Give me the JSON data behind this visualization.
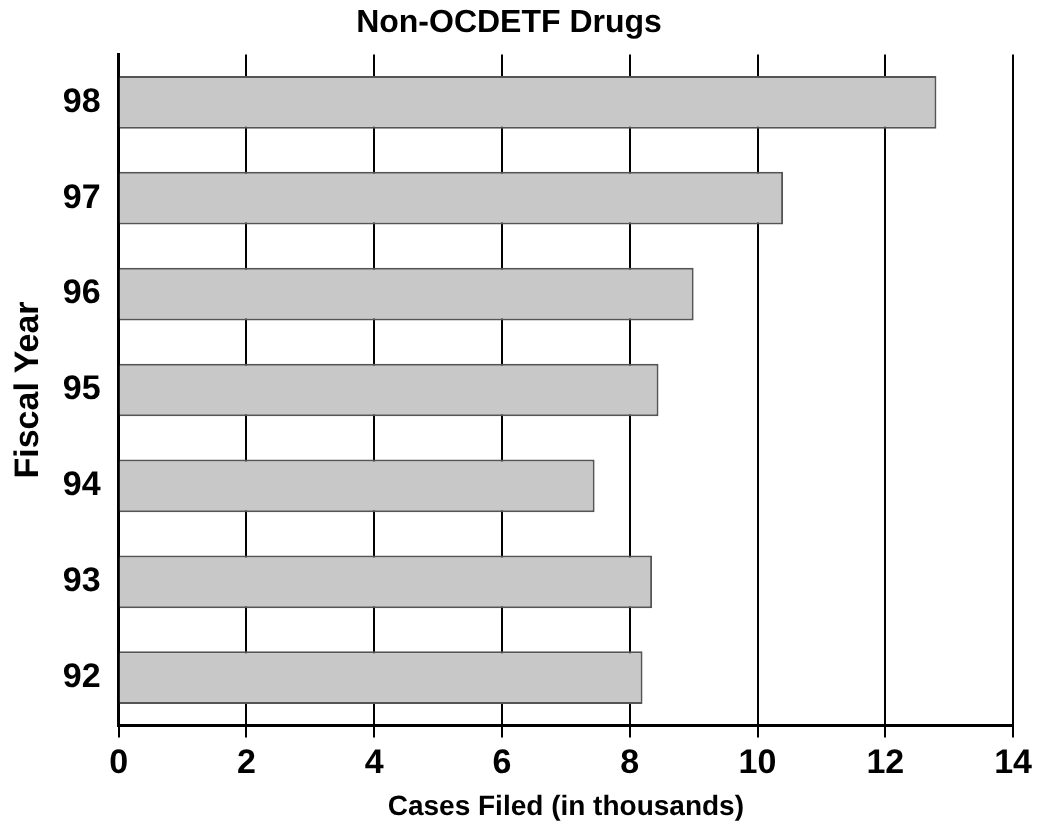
{
  "chart_data": {
    "type": "bar",
    "orientation": "horizontal",
    "title": "Non-OCDETF Drugs",
    "xlabel": "Cases Filed (in thousands)",
    "ylabel": "Fiscal Year",
    "categories": [
      "98",
      "97",
      "96",
      "95",
      "94",
      "93",
      "92"
    ],
    "values": [
      12.8,
      10.4,
      9.0,
      8.45,
      7.45,
      8.35,
      8.2
    ],
    "color": "#c8c8c8",
    "xlim": [
      0,
      14
    ],
    "xticks": [
      0,
      2,
      4,
      6,
      8,
      10,
      12,
      14
    ],
    "grid": "x"
  }
}
